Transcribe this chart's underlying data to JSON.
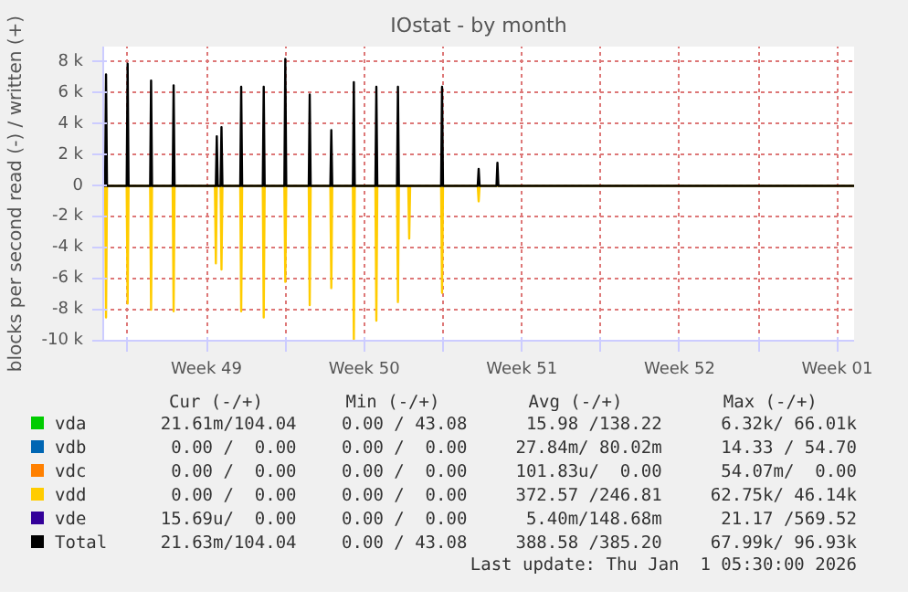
{
  "chart_data": {
    "type": "line",
    "title": "IOstat - by month",
    "ylabel": "blocks per second read (-) / written (+)",
    "xlim": [
      "2025-11-29T22:00",
      "2026-01-02T06:00"
    ],
    "xticks": [
      {
        "value": "2025-12-01T00:00",
        "label": null
      },
      {
        "value": "2025-12-04T12:00",
        "label": "Week 49"
      },
      {
        "value": "2025-12-08T00:00",
        "label": null
      },
      {
        "value": "2025-12-11T12:00",
        "label": "Week 50"
      },
      {
        "value": "2025-12-15T00:00",
        "label": null
      },
      {
        "value": "2025-12-18T12:00",
        "label": "Week 51"
      },
      {
        "value": "2025-12-22T00:00",
        "label": null
      },
      {
        "value": "2025-12-25T12:00",
        "label": "Week 52"
      },
      {
        "value": "2025-12-29T00:00",
        "label": null
      },
      {
        "value": "2026-01-01T12:00",
        "label": "Week 01"
      }
    ],
    "ylim": [
      -10000,
      9000
    ],
    "yticks": [
      {
        "value": -10000,
        "label": "-10 k"
      },
      {
        "value": -8000,
        "label": "-8 k"
      },
      {
        "value": -6000,
        "label": "-6 k"
      },
      {
        "value": -4000,
        "label": "-4 k"
      },
      {
        "value": -2000,
        "label": "-2 k"
      },
      0,
      {
        "value": 2000,
        "label": "2 k"
      },
      {
        "value": 4000,
        "label": "4 k"
      },
      {
        "value": 6000,
        "label": "6 k"
      },
      {
        "value": 8000,
        "label": "8 k"
      }
    ],
    "grid": true,
    "legend": "bottom",
    "marker": "none",
    "line_style": "solid",
    "series": [
      {
        "name": "vda",
        "color": "#00cc00"
      },
      {
        "name": "vdb",
        "color": "#0066b3"
      },
      {
        "name": "vdc",
        "color": "#ff8000"
      },
      {
        "name": "vdd",
        "color": "#ffcc00",
        "x": [
          "2025-11-29T22:00",
          "2025-11-30T00:00",
          "2025-11-30T01:00",
          "2025-11-30T02:00",
          "2025-11-30T23:00",
          "2025-12-01T00:00",
          "2025-12-01T01:00",
          "2025-12-02T00:00",
          "2025-12-02T01:00",
          "2025-12-02T02:00",
          "2025-12-03T00:00",
          "2025-12-03T01:00",
          "2025-12-03T02:00",
          "2025-12-04T21:00",
          "2025-12-04T22:00",
          "2025-12-04T23:00",
          "2025-12-05T03:00",
          "2025-12-05T04:00",
          "2025-12-05T05:00",
          "2025-12-06T00:00",
          "2025-12-06T01:00",
          "2025-12-06T02:00",
          "2025-12-07T00:00",
          "2025-12-07T01:00",
          "2025-12-07T02:00",
          "2025-12-07T23:00",
          "2025-12-08T00:00",
          "2025-12-08T01:00",
          "2025-12-09T01:00",
          "2025-12-09T02:00",
          "2025-12-09T03:00",
          "2025-12-10T00:00",
          "2025-12-10T01:00",
          "2025-12-10T02:00",
          "2025-12-11T00:00",
          "2025-12-11T01:00",
          "2025-12-11T02:00",
          "2025-12-12T00:00",
          "2025-12-12T01:00",
          "2025-12-12T02:00",
          "2025-12-12T23:00",
          "2025-12-13T00:00",
          "2025-12-13T01:00",
          "2025-12-13T11:00",
          "2025-12-13T12:00",
          "2025-12-13T13:00",
          "2025-12-14T22:00",
          "2025-12-14T23:00",
          "2025-12-15T00:00",
          "2025-12-16T13:00",
          "2025-12-16T14:00",
          "2025-12-16T15:00",
          "2026-01-02T06:00"
        ],
        "values": [
          0,
          0,
          -8500,
          0,
          0,
          -7600,
          0,
          0,
          -8000,
          0,
          0,
          -8100,
          0,
          0,
          -5000,
          0,
          0,
          -5400,
          0,
          0,
          -8100,
          0,
          0,
          -8500,
          0,
          0,
          -6200,
          0,
          0,
          -7700,
          0,
          0,
          -6600,
          0,
          0,
          -9900,
          0,
          0,
          -8700,
          0,
          0,
          -7500,
          0,
          0,
          -3400,
          0,
          0,
          -6900,
          0,
          0,
          -1000,
          0,
          0
        ]
      },
      {
        "name": "vde",
        "color": "#330099"
      },
      {
        "name": "Total",
        "color": "#000000",
        "x": [
          "2025-11-29T22:00",
          "2025-11-30T00:00",
          "2025-11-30T01:00",
          "2025-11-30T02:00",
          "2025-11-30T23:00",
          "2025-12-01T00:00",
          "2025-12-01T01:00",
          "2025-12-02T00:00",
          "2025-12-02T01:00",
          "2025-12-02T02:00",
          "2025-12-03T00:00",
          "2025-12-03T01:00",
          "2025-12-03T02:00",
          "2025-12-04T22:00",
          "2025-12-04T23:00",
          "2025-12-05T00:00",
          "2025-12-05T03:00",
          "2025-12-05T04:00",
          "2025-12-05T05:00",
          "2025-12-06T00:00",
          "2025-12-06T01:00",
          "2025-12-06T02:00",
          "2025-12-07T00:00",
          "2025-12-07T01:00",
          "2025-12-07T02:00",
          "2025-12-07T23:00",
          "2025-12-08T00:00",
          "2025-12-08T01:00",
          "2025-12-09T01:00",
          "2025-12-09T02:00",
          "2025-12-09T03:00",
          "2025-12-10T00:00",
          "2025-12-10T01:00",
          "2025-12-10T02:00",
          "2025-12-11T00:00",
          "2025-12-11T01:00",
          "2025-12-11T02:00",
          "2025-12-12T00:00",
          "2025-12-12T01:00",
          "2025-12-12T02:00",
          "2025-12-12T23:00",
          "2025-12-13T00:00",
          "2025-12-13T01:00",
          "2025-12-14T22:00",
          "2025-12-14T23:00",
          "2025-12-15T00:00",
          "2025-12-16T13:00",
          "2025-12-16T14:00",
          "2025-12-16T15:00",
          "2025-12-17T09:00",
          "2025-12-17T10:00",
          "2025-12-17T11:00",
          "2026-01-02T06:00"
        ],
        "values": [
          0,
          0,
          7200,
          0,
          0,
          7900,
          0,
          0,
          6800,
          0,
          0,
          6500,
          0,
          0,
          3200,
          0,
          0,
          3800,
          0,
          0,
          6400,
          0,
          0,
          6400,
          0,
          0,
          8200,
          0,
          0,
          5900,
          0,
          0,
          3600,
          0,
          0,
          6700,
          0,
          0,
          6400,
          0,
          0,
          6400,
          0,
          0,
          6400,
          0,
          0,
          1100,
          0,
          0,
          1500,
          0,
          0
        ]
      }
    ],
    "annotations": [
      "Cur (-/+)",
      "Min (-/+)",
      "Avg (-/+)",
      "Max (-/+)",
      "21.61m/104.04",
      "0.00 / 43.08",
      "15.98 /138.22",
      "6.32k/ 66.01k",
      "0.00 /  0.00",
      "0.00 /  0.00",
      "27.84m/ 80.02m",
      "14.33 / 54.70",
      "0.00 /  0.00",
      "0.00 /  0.00",
      "101.83u/  0.00",
      "54.07m/  0.00",
      "0.00 /  0.00",
      "0.00 /  0.00",
      "372.57 /246.81",
      "62.75k/ 46.14k",
      "15.69u/  0.00",
      "0.00 /  0.00",
      "5.40m/148.68m",
      "21.17 /569.52",
      "21.63m/104.04",
      "0.00 / 43.08",
      "388.58 /385.20",
      "67.99k/ 96.93k",
      "Last update: Thu Jan  1 05:30:00 2026"
    ]
  }
}
